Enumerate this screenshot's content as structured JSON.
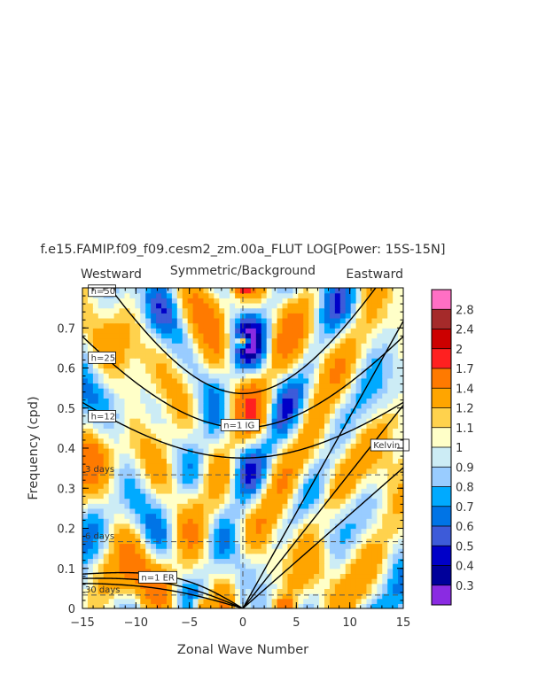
{
  "chart_data": {
    "type": "heatmap",
    "title": "f.e15.FAMIP.f09_f09.cesm2_zm.00a_FLUT LOG[Power: 15S-15N]",
    "subtitle": "Symmetric/Background",
    "left_label": "Westward",
    "right_label": "Eastward",
    "xlabel": "Zonal Wave Number",
    "ylabel": "Frequency (cpd)",
    "xlim": [
      -15,
      15
    ],
    "ylim": [
      0,
      0.8
    ],
    "x_ticks": [
      -15,
      -10,
      -5,
      0,
      5,
      10,
      15
    ],
    "x_tick_labels": [
      "−15",
      "−10",
      "−5",
      "0",
      "5",
      "10",
      "15"
    ],
    "y_ticks": [
      0,
      0.1,
      0.2,
      0.3,
      0.4,
      0.5,
      0.6,
      0.7
    ],
    "y_tick_labels": [
      "0",
      "0.1",
      "0.2",
      "0.3",
      "0.4",
      "0.5",
      "0.6",
      "0.7"
    ],
    "period_lines": [
      {
        "label": "3 days",
        "freq": 0.3333
      },
      {
        "label": "6 days",
        "freq": 0.1667
      },
      {
        "label": "30 days",
        "freq": 0.0333
      }
    ],
    "dispersion_labels": [
      {
        "label": "h=50",
        "x": -14.2,
        "y": 0.785
      },
      {
        "label": "h=25",
        "x": -14.2,
        "y": 0.618
      },
      {
        "label": "h=12",
        "x": -14.2,
        "y": 0.472
      },
      {
        "label": "n=1 IG",
        "x": -1.8,
        "y": 0.45
      },
      {
        "label": "Kelvin",
        "x": 12.2,
        "y": 0.4
      },
      {
        "label": "n=1 ER",
        "x": -9.5,
        "y": 0.07
      }
    ],
    "equivalent_depths": [
      12,
      25,
      50
    ],
    "colorbar": {
      "levels": [
        "2.8",
        "2.4",
        "2",
        "1.7",
        "1.4",
        "1.2",
        "1.1",
        "1",
        "0.9",
        "0.8",
        "0.7",
        "0.6",
        "0.5",
        "0.4",
        "0.3"
      ],
      "colors": [
        "#ff6fc4",
        "#a52a2a",
        "#cc0000",
        "#ff2020",
        "#ff7a00",
        "#ffa500",
        "#ffd24d",
        "#ffffc8",
        "#ccecf5",
        "#99ccff",
        "#00aaff",
        "#0074e6",
        "#3d5bd9",
        "#0000c8",
        "#00009a",
        "#8a2be2"
      ]
    }
  }
}
